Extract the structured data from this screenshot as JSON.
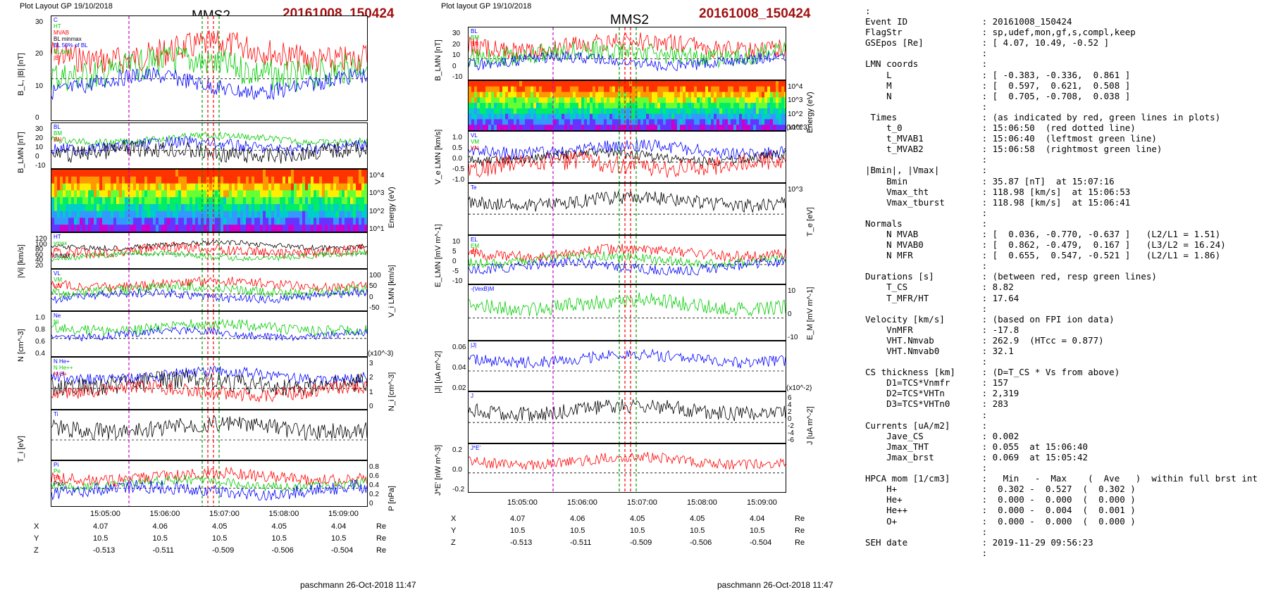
{
  "left": {
    "header": "Plot Layout GP 19/10/2018",
    "spacecraft": "MMS2",
    "event": "20161008_150424",
    "footer": "paschmann 26-Oct-2018 11:47",
    "panels": [
      {
        "ylabel": "B_L, |B| [nT]",
        "ticks": [
          "30",
          "20",
          "10",
          "0"
        ],
        "legend": [
          "C",
          "HT",
          "MVAB",
          "BL minmax",
          "BL 50% of BL",
          "BL brst",
          "|B|"
        ]
      },
      {
        "ylabel": "B_LMN [nT]",
        "ticks": [
          "30",
          "20",
          "10",
          "0",
          "-10"
        ],
        "legend": [
          "BL",
          "BM",
          "BN"
        ]
      },
      {
        "ylabel": "Energy (eV)",
        "ticks": [
          "10^4",
          "10^3",
          "10^2",
          "10^1"
        ]
      },
      {
        "ylabel": "|Vi| [km/s]",
        "ticks": [
          "120",
          "100",
          "80",
          "60",
          "40",
          "20"
        ],
        "legend": [
          "HT",
          "vmax",
          "cs",
          "dvmax"
        ]
      },
      {
        "ylabel": "V_i LMN [km/s]",
        "ticks": [
          "100",
          "50",
          "0",
          "-50"
        ],
        "legend": [
          "VL",
          "VM",
          "VN"
        ]
      },
      {
        "ylabel": "N [cm^-3]",
        "ticks": [
          "1.0",
          "0.8",
          "0.6",
          "0.4"
        ],
        "legend": [
          "Ne",
          "Ni"
        ]
      },
      {
        "ylabel": "N_i [cm^-3]",
        "ticks": [
          "3",
          "2",
          "1",
          "0"
        ],
        "scale": "(x10^-3)",
        "legend": [
          "N He+",
          "N He++",
          "N O+"
        ]
      },
      {
        "ylabel": "T_i [eV]",
        "legend": [
          "Ti"
        ]
      },
      {
        "ylabel": "P [nPa]",
        "ticks": [
          "0.8",
          "0.6",
          "0.4",
          "0.2",
          "0"
        ],
        "legend": [
          "Pi",
          "Pe",
          "Pb",
          "Ptot"
        ]
      }
    ],
    "xticks": [
      "15:05:00",
      "15:06:00",
      "15:07:00",
      "15:08:00",
      "15:09:00"
    ],
    "ephemeris": {
      "X": [
        "4.07",
        "4.06",
        "4.05",
        "4.05",
        "4.04"
      ],
      "Y": [
        "10.5",
        "10.5",
        "10.5",
        "10.5",
        "10.5"
      ],
      "Z": [
        "-0.513",
        "-0.511",
        "-0.509",
        "-0.506",
        "-0.504"
      ],
      "unit": "Re"
    }
  },
  "middle": {
    "header": "Plot layout GP 19/10/2018",
    "spacecraft": "MMS2",
    "event": "20161008_150424",
    "footer": "paschmann 26-Oct-2018 11:47",
    "panels": [
      {
        "ylabel": "B_LMN [nT]",
        "ticks": [
          "30",
          "20",
          "10",
          "0",
          "-10"
        ],
        "legend": [
          "BL",
          "BM",
          "BN"
        ]
      },
      {
        "ylabel": "Energy (eV)",
        "ticks": [
          "10^4",
          "10^3",
          "10^2",
          "10^1"
        ]
      },
      {
        "ylabel": "V_e LMN [km/s]",
        "ticks": [
          "1.0",
          "0.5",
          "0.0",
          "-0.5",
          "-1.0"
        ],
        "scale": "(x10^3)",
        "legend": [
          "VL",
          "VM",
          "VN"
        ]
      },
      {
        "ylabel": "T_e [eV]",
        "ticks": [
          "10^3"
        ],
        "legend": [
          "Te"
        ]
      },
      {
        "ylabel": "E_LMN [mV m^-1]",
        "ticks": [
          "10",
          "5",
          "0",
          "-5",
          "-10"
        ],
        "legend": [
          "EL",
          "EM",
          "EN"
        ]
      },
      {
        "ylabel": "E_M [mV m^-1]",
        "ticks": [
          "10",
          "0",
          "-10"
        ],
        "legend": [
          "-(VexB)M"
        ]
      },
      {
        "ylabel": "|J| [uA m^-2]",
        "ticks": [
          "0.06",
          "0.04",
          "0.02"
        ],
        "legend": [
          "|J|"
        ]
      },
      {
        "ylabel": "J [uA m^-2]",
        "ticks": [
          "6",
          "4",
          "2",
          "0",
          "-2",
          "-4",
          "-6"
        ],
        "scale": "(x10^-2)",
        "legend": [
          "J"
        ]
      },
      {
        "ylabel": "J*E' [nW m^-3]",
        "ticks": [
          "0.2",
          "0.0",
          "-0.2"
        ],
        "legend": [
          "J*E'"
        ]
      }
    ],
    "xticks": [
      "15:05:00",
      "15:06:00",
      "15:07:00",
      "15:08:00",
      "15:09:00"
    ],
    "ephemeris": {
      "X": [
        "4.07",
        "4.06",
        "4.05",
        "4.05",
        "4.04"
      ],
      "Y": [
        "10.5",
        "10.5",
        "10.5",
        "10.5",
        "10.5"
      ],
      "Z": [
        "-0.513",
        "-0.511",
        "-0.509",
        "-0.506",
        "-0.504"
      ],
      "unit": "Re"
    }
  },
  "info_lines": [
    ":",
    "Event ID              : 20161008_150424",
    "FlagStr               : sp,udef,mon,gf,s,compl,keep",
    "GSEpos [Re]           : [ 4.07, 10.49, -0.52 ]",
    "                      :",
    "LMN coords            :",
    "    L                 : [ -0.383, -0.336,  0.861 ]",
    "    M                 : [  0.597,  0.621,  0.508 ]",
    "    N                 : [  0.705, -0.708,  0.038 ]",
    "                      :",
    " Times                : (as indicated by red, green lines in plots)",
    "    t_0               : 15:06:50  (red dotted line)",
    "    t_MVAB1           : 15:06:40  (leftmost green line)",
    "    t_MVAB2           : 15:06:58  (rightmost green line)",
    "                      :",
    "|Bmin|, |Vmax|        :",
    "    Bmin              : 35.87 [nT]  at 15:07:16",
    "    Vmax_tht          : 118.98 [km/s]  at 15:06:53",
    "    Vmax_tburst       : 118.98 [km/s]  at 15:06:41",
    "                      :",
    "Normals               :",
    "    N MVAB            : [  0.036, -0.770, -0.637 ]   (L2/L1 = 1.51)",
    "    N MVAB0           : [  0.862, -0.479,  0.167 ]   (L3/L2 = 16.24)",
    "    N MFR             : [  0.655,  0.547, -0.521 ]   (L2/L1 = 1.86)",
    "                      :",
    "Durations [s]         : (between red, resp green lines)",
    "    T_CS              : 8.82",
    "    T_MFR/HT          : 17.64",
    "                      :",
    "Velocity [km/s]       : (based on FPI ion data)",
    "    VnMFR             : -17.8",
    "    VHT.Nmvab         : 262.9  (HTcc = 0.877)",
    "    VHT.Nmvab0        : 32.1",
    "                      :",
    "CS thickness [km]     : (D=T_CS * Vs from above)",
    "    D1=TCS*Vnmfr      : 157",
    "    D2=TCS*VHTn       : 2,319",
    "    D3=TCS*VHTn0      : 283",
    "                      :",
    "Currents [uA/m2]      :",
    "    Jave_CS           : 0.002",
    "    Jmax_THT          : 0.055  at 15:06:40",
    "    Jmax_brst         : 0.069  at 15:05:42",
    "                      :",
    "HPCA mom [1/cm3]      :   Min   -  Max    (  Ave   )  within full brst int",
    "    H+                :  0.302 -  0.527  (  0.302 )",
    "    He+               :  0.000 -  0.000  (  0.000 )",
    "    He++              :  0.000 -  0.004  (  0.001 )",
    "    O+                :  0.000 -  0.000  (  0.000 )",
    "                      :",
    "SEH date              : 2019-11-29 09:56:23",
    "                      :"
  ],
  "colors": {
    "event": "#a01010",
    "L": "#0000ff",
    "M": "#00cc00",
    "N": "#ff0000",
    "total": "#000000"
  }
}
